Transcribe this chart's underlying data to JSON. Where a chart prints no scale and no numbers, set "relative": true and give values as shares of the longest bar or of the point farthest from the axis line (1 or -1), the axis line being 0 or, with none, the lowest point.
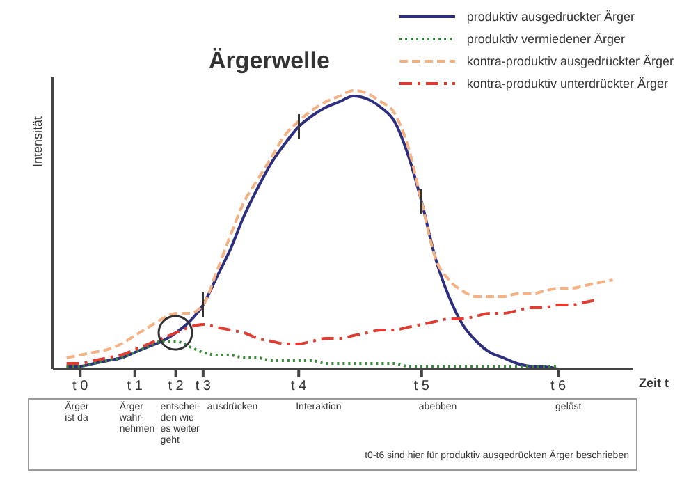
{
  "chart_data": {
    "type": "line",
    "title": "Ärgerwelle",
    "ylabel": "Intensität",
    "xlabel": "Zeit t",
    "relative": true,
    "legend": "top right",
    "marker": "none",
    "categories": [
      null,
      "t 0",
      null,
      null,
      null,
      "t 1",
      null,
      null,
      "t 2",
      null,
      "t 3",
      null,
      null,
      null,
      null,
      null,
      null,
      "t 4",
      null,
      null,
      null,
      null,
      null,
      null,
      null,
      null,
      "t 5",
      null,
      null,
      null,
      null,
      null,
      null,
      null,
      null,
      null,
      "t 6",
      null,
      null,
      null,
      null,
      null
    ],
    "series": [
      {
        "name": "produktiv ausgedrückter Ärger",
        "color": "#2e2e80",
        "line_style": "solid",
        "values": [
          0.01,
          0.01,
          0.02,
          0.03,
          0.04,
          0.06,
          0.08,
          0.1,
          0.13,
          0.17,
          0.23,
          0.33,
          0.43,
          0.55,
          0.65,
          0.74,
          0.81,
          0.87,
          0.91,
          0.94,
          0.96,
          0.98,
          0.97,
          0.94,
          0.89,
          0.77,
          0.6,
          0.4,
          0.26,
          0.16,
          0.1,
          0.06,
          0.04,
          0.02,
          0.01,
          0.01,
          0,
          0,
          null,
          null,
          null,
          null
        ]
      },
      {
        "name": "produktiv vermiedener Ärger",
        "color": "#3a8a3a",
        "line_style": "dotted",
        "values": [
          0.01,
          0.01,
          0.02,
          0.03,
          0.04,
          0.06,
          0.08,
          0.1,
          0.1,
          0.08,
          0.06,
          0.05,
          0.05,
          0.04,
          0.04,
          0.03,
          0.03,
          0.03,
          0.03,
          0.02,
          0.02,
          0.02,
          0.02,
          0.02,
          0.02,
          0.01,
          0.01,
          0.01,
          0.01,
          0.01,
          0.01,
          0.01,
          0.01,
          0.01,
          0.01,
          0.01,
          0.01,
          null,
          null,
          null,
          null,
          null
        ]
      },
      {
        "name": "kontra-produktiv ausgedrückter Ärger",
        "color": "#f4b183",
        "line_style": "dashed",
        "values": [
          0.04,
          0.05,
          0.06,
          0.07,
          0.09,
          0.12,
          0.15,
          0.18,
          0.2,
          0.2,
          0.23,
          0.35,
          0.48,
          0.6,
          0.68,
          0.76,
          0.84,
          0.89,
          0.93,
          0.96,
          0.98,
          1,
          0.99,
          0.96,
          0.92,
          0.8,
          0.6,
          0.4,
          0.32,
          0.28,
          0.26,
          0.26,
          0.26,
          0.27,
          0.27,
          0.28,
          0.29,
          0.29,
          0.3,
          0.31,
          0.32,
          null
        ]
      },
      {
        "name": "kontra-produktiv unterdrückter Ärger",
        "color": "#e03c31",
        "line_style": "dashdot",
        "values": [
          0.02,
          0.02,
          0.03,
          0.04,
          0.05,
          0.07,
          0.09,
          0.11,
          0.13,
          0.15,
          0.16,
          0.15,
          0.14,
          0.13,
          0.11,
          0.1,
          0.09,
          0.09,
          0.1,
          0.11,
          0.11,
          0.12,
          0.13,
          0.14,
          0.14,
          0.15,
          0.16,
          0.17,
          0.18,
          0.18,
          0.19,
          0.2,
          0.2,
          0.21,
          0.22,
          0.22,
          0.23,
          0.23,
          0.24,
          0.25,
          null,
          null
        ]
      }
    ],
    "annotations": [
      "Ärger\nist da",
      "Ärger\nwahr-\nnehmen",
      "entschei-\nden wie\nes weiter\ngeht",
      "ausdrücken",
      "Interaktion",
      "abebben",
      "gelöst",
      "t0-t6 sind hier für produktiv ausgedrückten Ärger beschrieben"
    ]
  }
}
